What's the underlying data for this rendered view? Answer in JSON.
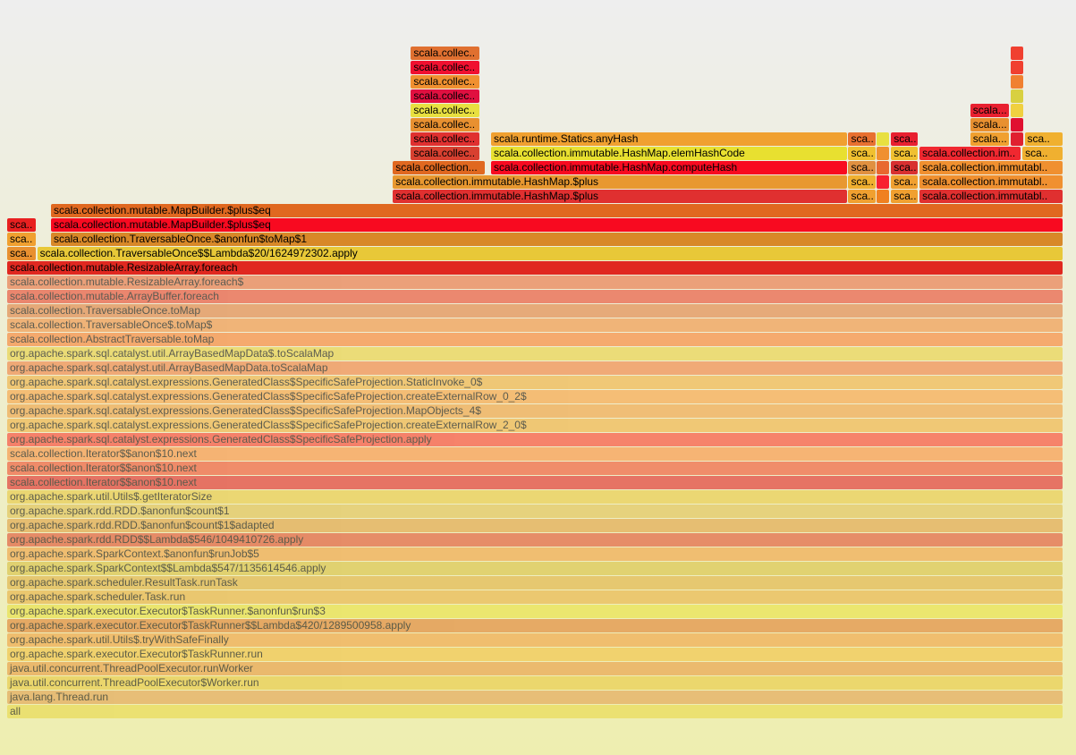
{
  "flamegraph": {
    "rows": [
      [
        {
          "label": "all",
          "start": 0.0,
          "end": 1.0,
          "color": "#e8d84a",
          "dim": true
        }
      ],
      [
        {
          "label": "java.lang.Thread.run",
          "start": 0.0,
          "end": 1.0,
          "color": "#e2a050",
          "dim": true
        }
      ],
      [
        {
          "label": "java.util.concurrent.ThreadPoolExecutor$Worker.run",
          "start": 0.0,
          "end": 1.0,
          "color": "#e8c840",
          "dim": true
        }
      ],
      [
        {
          "label": "java.util.concurrent.ThreadPoolExecutor.runWorker",
          "start": 0.0,
          "end": 1.0,
          "color": "#e89a40",
          "dim": true
        }
      ],
      [
        {
          "label": "org.apache.spark.executor.Executor$TaskRunner.run",
          "start": 0.0,
          "end": 1.0,
          "color": "#f2c040",
          "dim": true
        }
      ],
      [
        {
          "label": "org.apache.spark.util.Utils$.tryWithSafeFinally",
          "start": 0.0,
          "end": 1.0,
          "color": "#f0a040",
          "dim": true
        }
      ],
      [
        {
          "label": "org.apache.spark.executor.Executor$TaskRunner$$Lambda$420/1289500958.apply",
          "start": 0.0,
          "end": 1.0,
          "color": "#e08030",
          "dim": true
        }
      ],
      [
        {
          "label": "org.apache.spark.executor.Executor$TaskRunner.$anonfun$run$3",
          "start": 0.0,
          "end": 1.0,
          "color": "#e8e040",
          "dim": true
        }
      ],
      [
        {
          "label": "org.apache.spark.scheduler.Task.run",
          "start": 0.0,
          "end": 1.0,
          "color": "#e8b040",
          "dim": true
        }
      ],
      [
        {
          "label": "org.apache.spark.scheduler.ResultTask.runTask",
          "start": 0.0,
          "end": 1.0,
          "color": "#e0b040",
          "dim": true
        }
      ],
      [
        {
          "label": "org.apache.spark.SparkContext$$Lambda$547/1135614546.apply",
          "start": 0.0,
          "end": 1.0,
          "color": "#d8c040",
          "dim": true
        }
      ],
      [
        {
          "label": "org.apache.spark.SparkContext.$anonfun$runJob$5",
          "start": 0.0,
          "end": 1.0,
          "color": "#f0a040",
          "dim": true
        }
      ],
      [
        {
          "label": "org.apache.spark.rdd.RDD$$Lambda$546/1049410726.apply",
          "start": 0.0,
          "end": 1.0,
          "color": "#e05030",
          "dim": true
        }
      ],
      [
        {
          "label": "org.apache.spark.rdd.RDD.$anonfun$count$1$adapted",
          "start": 0.0,
          "end": 1.0,
          "color": "#e0a040",
          "dim": true
        }
      ],
      [
        {
          "label": "org.apache.spark.rdd.RDD.$anonfun$count$1",
          "start": 0.0,
          "end": 1.0,
          "color": "#e0c050",
          "dim": true
        }
      ],
      [
        {
          "label": "org.apache.spark.util.Utils$.getIteratorSize",
          "start": 0.0,
          "end": 1.0,
          "color": "#e8c840",
          "dim": true
        }
      ],
      [
        {
          "label": "scala.collection.Iterator$$anon$10.next",
          "start": 0.0,
          "end": 1.0,
          "color": "#e02828",
          "dim": true
        }
      ],
      [
        {
          "label": "scala.collection.Iterator$$anon$10.next",
          "start": 0.0,
          "end": 1.0,
          "color": "#f05030",
          "dim": true
        }
      ],
      [
        {
          "label": "scala.collection.Iterator$$anon$10.next",
          "start": 0.0,
          "end": 1.0,
          "color": "#fa9040",
          "dim": true
        }
      ],
      [
        {
          "label": "org.apache.spark.sql.catalyst.expressions.GeneratedClass$SpecificSafeProjection.apply",
          "start": 0.0,
          "end": 1.0,
          "color": "#fa4030",
          "dim": true
        }
      ],
      [
        {
          "label": "org.apache.spark.sql.catalyst.expressions.GeneratedClass$SpecificSafeProjection.createExternalRow_2_0$",
          "start": 0.0,
          "end": 1.0,
          "color": "#f0b040",
          "dim": true
        }
      ],
      [
        {
          "label": "org.apache.spark.sql.catalyst.expressions.GeneratedClass$SpecificSafeProjection.MapObjects_4$",
          "start": 0.0,
          "end": 1.0,
          "color": "#f0a040",
          "dim": true
        }
      ],
      [
        {
          "label": "org.apache.spark.sql.catalyst.expressions.GeneratedClass$SpecificSafeProjection.createExternalRow_0_2$",
          "start": 0.0,
          "end": 1.0,
          "color": "#f8a040",
          "dim": true
        }
      ],
      [
        {
          "label": "org.apache.spark.sql.catalyst.expressions.GeneratedClass$SpecificSafeProjection.StaticInvoke_0$",
          "start": 0.0,
          "end": 1.0,
          "color": "#f0b040",
          "dim": true
        }
      ],
      [
        {
          "label": "org.apache.spark.sql.catalyst.util.ArrayBasedMapData.toScalaMap",
          "start": 0.0,
          "end": 1.0,
          "color": "#f08040",
          "dim": true
        }
      ],
      [
        {
          "label": "org.apache.spark.sql.catalyst.util.ArrayBasedMapData$.toScalaMap",
          "start": 0.0,
          "end": 1.0,
          "color": "#e8d040",
          "dim": true
        }
      ],
      [
        {
          "label": "scala.collection.AbstractTraversable.toMap",
          "start": 0.0,
          "end": 1.0,
          "color": "#f88030",
          "dim": true
        }
      ],
      [
        {
          "label": "scala.collection.TraversableOnce$.toMap$",
          "start": 0.0,
          "end": 1.0,
          "color": "#f09040",
          "dim": true
        }
      ],
      [
        {
          "label": "scala.collection.TraversableOnce.toMap",
          "start": 0.0,
          "end": 1.0,
          "color": "#e08040",
          "dim": true
        }
      ],
      [
        {
          "label": "scala.collection.mutable.ArrayBuffer.foreach",
          "start": 0.0,
          "end": 1.0,
          "color": "#e84830",
          "dim": true
        }
      ],
      [
        {
          "label": "scala.collection.mutable.ResizableArray.foreach$",
          "start": 0.0,
          "end": 1.0,
          "color": "#e87040",
          "dim": true
        }
      ],
      [
        {
          "label": "scala.collection.mutable.ResizableArray.foreach",
          "start": 0.0,
          "end": 1.0,
          "color": "#e02820",
          "dim": false
        }
      ],
      [
        {
          "label": "sca..",
          "start": 0.0,
          "end": 0.027,
          "color": "#e89030",
          "dim": false
        },
        {
          "label": "scala.collection.TraversableOnce$$Lambda$20/1624972302.apply",
          "start": 0.0285,
          "end": 1.0,
          "color": "#e8c838",
          "dim": false
        }
      ],
      [
        {
          "label": "sca..",
          "start": 0.0,
          "end": 0.027,
          "color": "#f0a030",
          "dim": false
        },
        {
          "label": "scala.collection.TraversableOnce.$anonfun$toMap$1",
          "start": 0.0415,
          "end": 1.0,
          "color": "#d88828",
          "dim": false
        }
      ],
      [
        {
          "label": "sca..",
          "start": 0.0,
          "end": 0.027,
          "color": "#e82020",
          "dim": false
        },
        {
          "label": "scala.collection.mutable.MapBuilder.$plus$eq",
          "start": 0.0415,
          "end": 1.0,
          "color": "#f80a20",
          "dim": false
        }
      ],
      [
        {
          "label": "scala.collection.mutable.MapBuilder.$plus$eq",
          "start": 0.0415,
          "end": 1.0,
          "color": "#e06820",
          "dim": false
        }
      ],
      [
        {
          "label": "scala.collection.immutable.HashMap.$plus",
          "start": 0.3655,
          "end": 0.7955,
          "color": "#e03030",
          "dim": false
        },
        {
          "label": "sca..",
          "start": 0.797,
          "end": 0.8225,
          "color": "#f0a030",
          "dim": false
        },
        {
          "label": "",
          "start": 0.8235,
          "end": 0.8355,
          "color": "#f08020",
          "dim": false
        },
        {
          "label": "sca..",
          "start": 0.8375,
          "end": 0.863,
          "color": "#f0a030",
          "dim": false
        },
        {
          "label": "scala.collection.immutabl..",
          "start": 0.8645,
          "end": 1.0,
          "color": "#e03030",
          "dim": false
        }
      ],
      [
        {
          "label": "scala.collection.immutable.HashMap.$plus",
          "start": 0.3655,
          "end": 0.7955,
          "color": "#e89830",
          "dim": false
        },
        {
          "label": "sca..",
          "start": 0.797,
          "end": 0.8225,
          "color": "#f0b030",
          "dim": false
        },
        {
          "label": "",
          "start": 0.8235,
          "end": 0.8355,
          "color": "#f82030",
          "dim": false
        },
        {
          "label": "sca..",
          "start": 0.8375,
          "end": 0.863,
          "color": "#f0a030",
          "dim": false
        },
        {
          "label": "scala.collection.immutabl..",
          "start": 0.8645,
          "end": 1.0,
          "color": "#f09030",
          "dim": false
        }
      ],
      [
        {
          "label": "scala.collection...",
          "start": 0.3655,
          "end": 0.4525,
          "color": "#e06820",
          "dim": false
        },
        {
          "label": "scala.collection.immutable.HashMap.computeHash",
          "start": 0.4585,
          "end": 0.7955,
          "color": "#f80a20",
          "dim": false
        },
        {
          "label": "sca..",
          "start": 0.797,
          "end": 0.8225,
          "color": "#e09040",
          "dim": false
        },
        {
          "label": "",
          "start": 0.8235,
          "end": 0.8355,
          "color": "#e86830",
          "dim": false
        },
        {
          "label": "sca..",
          "start": 0.8375,
          "end": 0.863,
          "color": "#d83030",
          "dim": false
        },
        {
          "label": "scala.collection.immutabl..",
          "start": 0.8645,
          "end": 1.0,
          "color": "#f09030",
          "dim": false
        }
      ],
      [
        {
          "label": "scala.collec..",
          "start": 0.3825,
          "end": 0.4475,
          "color": "#d84030",
          "dim": false
        },
        {
          "label": "scala.collection.immutable.HashMap.elemHashCode",
          "start": 0.4585,
          "end": 0.7955,
          "color": "#e8e030",
          "dim": false
        },
        {
          "label": "sca..",
          "start": 0.797,
          "end": 0.8225,
          "color": "#f0c030",
          "dim": false
        },
        {
          "label": "",
          "start": 0.8235,
          "end": 0.8355,
          "color": "#f09030",
          "dim": false
        },
        {
          "label": "sca..",
          "start": 0.8375,
          "end": 0.863,
          "color": "#f0c030",
          "dim": false
        },
        {
          "label": "scala.collection.im..",
          "start": 0.8645,
          "end": 0.9605,
          "color": "#f02830",
          "dim": false
        },
        {
          "label": "sca..",
          "start": 0.962,
          "end": 1.0,
          "color": "#f0b030",
          "dim": false
        }
      ],
      [
        {
          "label": "scala.collec..",
          "start": 0.3825,
          "end": 0.4475,
          "color": "#e03030",
          "dim": false
        },
        {
          "label": "scala.runtime.Statics.anyHash",
          "start": 0.4585,
          "end": 0.7955,
          "color": "#f0a030",
          "dim": false
        },
        {
          "label": "sca..",
          "start": 0.797,
          "end": 0.8225,
          "color": "#e87030",
          "dim": false
        },
        {
          "label": "",
          "start": 0.8235,
          "end": 0.8355,
          "color": "#e8e040",
          "dim": false
        },
        {
          "label": "sca..",
          "start": 0.8375,
          "end": 0.863,
          "color": "#e82030",
          "dim": false
        },
        {
          "label": "scala...",
          "start": 0.9125,
          "end": 0.9495,
          "color": "#f0a030",
          "dim": false
        },
        {
          "label": "",
          "start": 0.951,
          "end": 0.9625,
          "color": "#e02030",
          "dim": false
        },
        {
          "label": "sca..",
          "start": 0.964,
          "end": 1.0,
          "color": "#f0b030",
          "dim": false
        }
      ],
      [
        {
          "label": "scala.collec..",
          "start": 0.3825,
          "end": 0.4475,
          "color": "#e89030",
          "dim": false
        },
        {
          "label": "scala...",
          "start": 0.9125,
          "end": 0.9495,
          "color": "#e89030",
          "dim": false
        },
        {
          "label": "",
          "start": 0.951,
          "end": 0.9625,
          "color": "#e01030",
          "dim": false
        }
      ],
      [
        {
          "label": "scala.collec..",
          "start": 0.3825,
          "end": 0.4475,
          "color": "#e8e040",
          "dim": false
        },
        {
          "label": "scala...",
          "start": 0.9125,
          "end": 0.9495,
          "color": "#e82030",
          "dim": false
        },
        {
          "label": "",
          "start": 0.951,
          "end": 0.9625,
          "color": "#f0d040",
          "dim": false
        }
      ],
      [
        {
          "label": "scala.collec..",
          "start": 0.3825,
          "end": 0.4475,
          "color": "#e01040",
          "dim": false
        },
        {
          "label": "",
          "start": 0.951,
          "end": 0.9625,
          "color": "#d8d040",
          "dim": false
        }
      ],
      [
        {
          "label": "scala.collec..",
          "start": 0.3825,
          "end": 0.4475,
          "color": "#f09030",
          "dim": false
        },
        {
          "label": "",
          "start": 0.951,
          "end": 0.9625,
          "color": "#f08030",
          "dim": false
        }
      ],
      [
        {
          "label": "scala.collec..",
          "start": 0.3825,
          "end": 0.4475,
          "color": "#f01030",
          "dim": false
        },
        {
          "label": "",
          "start": 0.951,
          "end": 0.9625,
          "color": "#f04030",
          "dim": false
        }
      ],
      [
        {
          "label": "scala.collec..",
          "start": 0.3825,
          "end": 0.4475,
          "color": "#e07030",
          "dim": false
        },
        {
          "label": "",
          "start": 0.951,
          "end": 0.9625,
          "color": "#f04030",
          "dim": false
        }
      ]
    ]
  }
}
